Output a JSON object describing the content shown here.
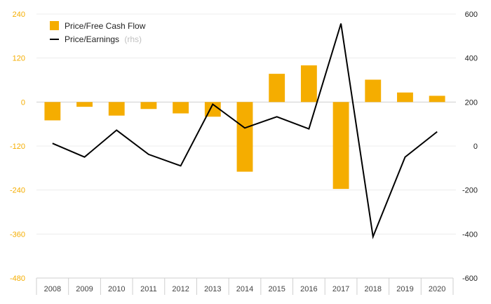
{
  "chart_data": {
    "type": "bar+line",
    "categories": [
      "2008",
      "2009",
      "2010",
      "2011",
      "2012",
      "2013",
      "2014",
      "2015",
      "2016",
      "2017",
      "2018",
      "2019",
      "2020"
    ],
    "series": [
      {
        "name": "Price/Free Cash Flow",
        "type": "bar",
        "axis": "left",
        "color": "#f5ad00",
        "values": [
          -50,
          -13,
          -37,
          -19,
          -31,
          -40,
          -190,
          77,
          100,
          -237,
          61,
          26,
          17
        ]
      },
      {
        "name": "Price/Earnings",
        "type": "line",
        "axis": "right",
        "color": "#000000",
        "values": [
          12,
          -50,
          72,
          -38,
          -90,
          190,
          82,
          133,
          78,
          557,
          -412,
          -50,
          65
        ]
      }
    ],
    "legend": {
      "bar_label": "Price/Free Cash Flow",
      "line_label": "Price/Earnings",
      "line_suffix": "(rhs)",
      "position": "top-left"
    },
    "y_left": {
      "ticks": [
        "240",
        "120",
        "0",
        "-120",
        "-240",
        "-360",
        "-480"
      ],
      "ylim": [
        -480,
        240
      ]
    },
    "y_right": {
      "ticks": [
        "600",
        "400",
        "200",
        "0",
        "-200",
        "-400",
        "-600"
      ],
      "ylim": [
        -600,
        600
      ]
    },
    "grid": true
  }
}
